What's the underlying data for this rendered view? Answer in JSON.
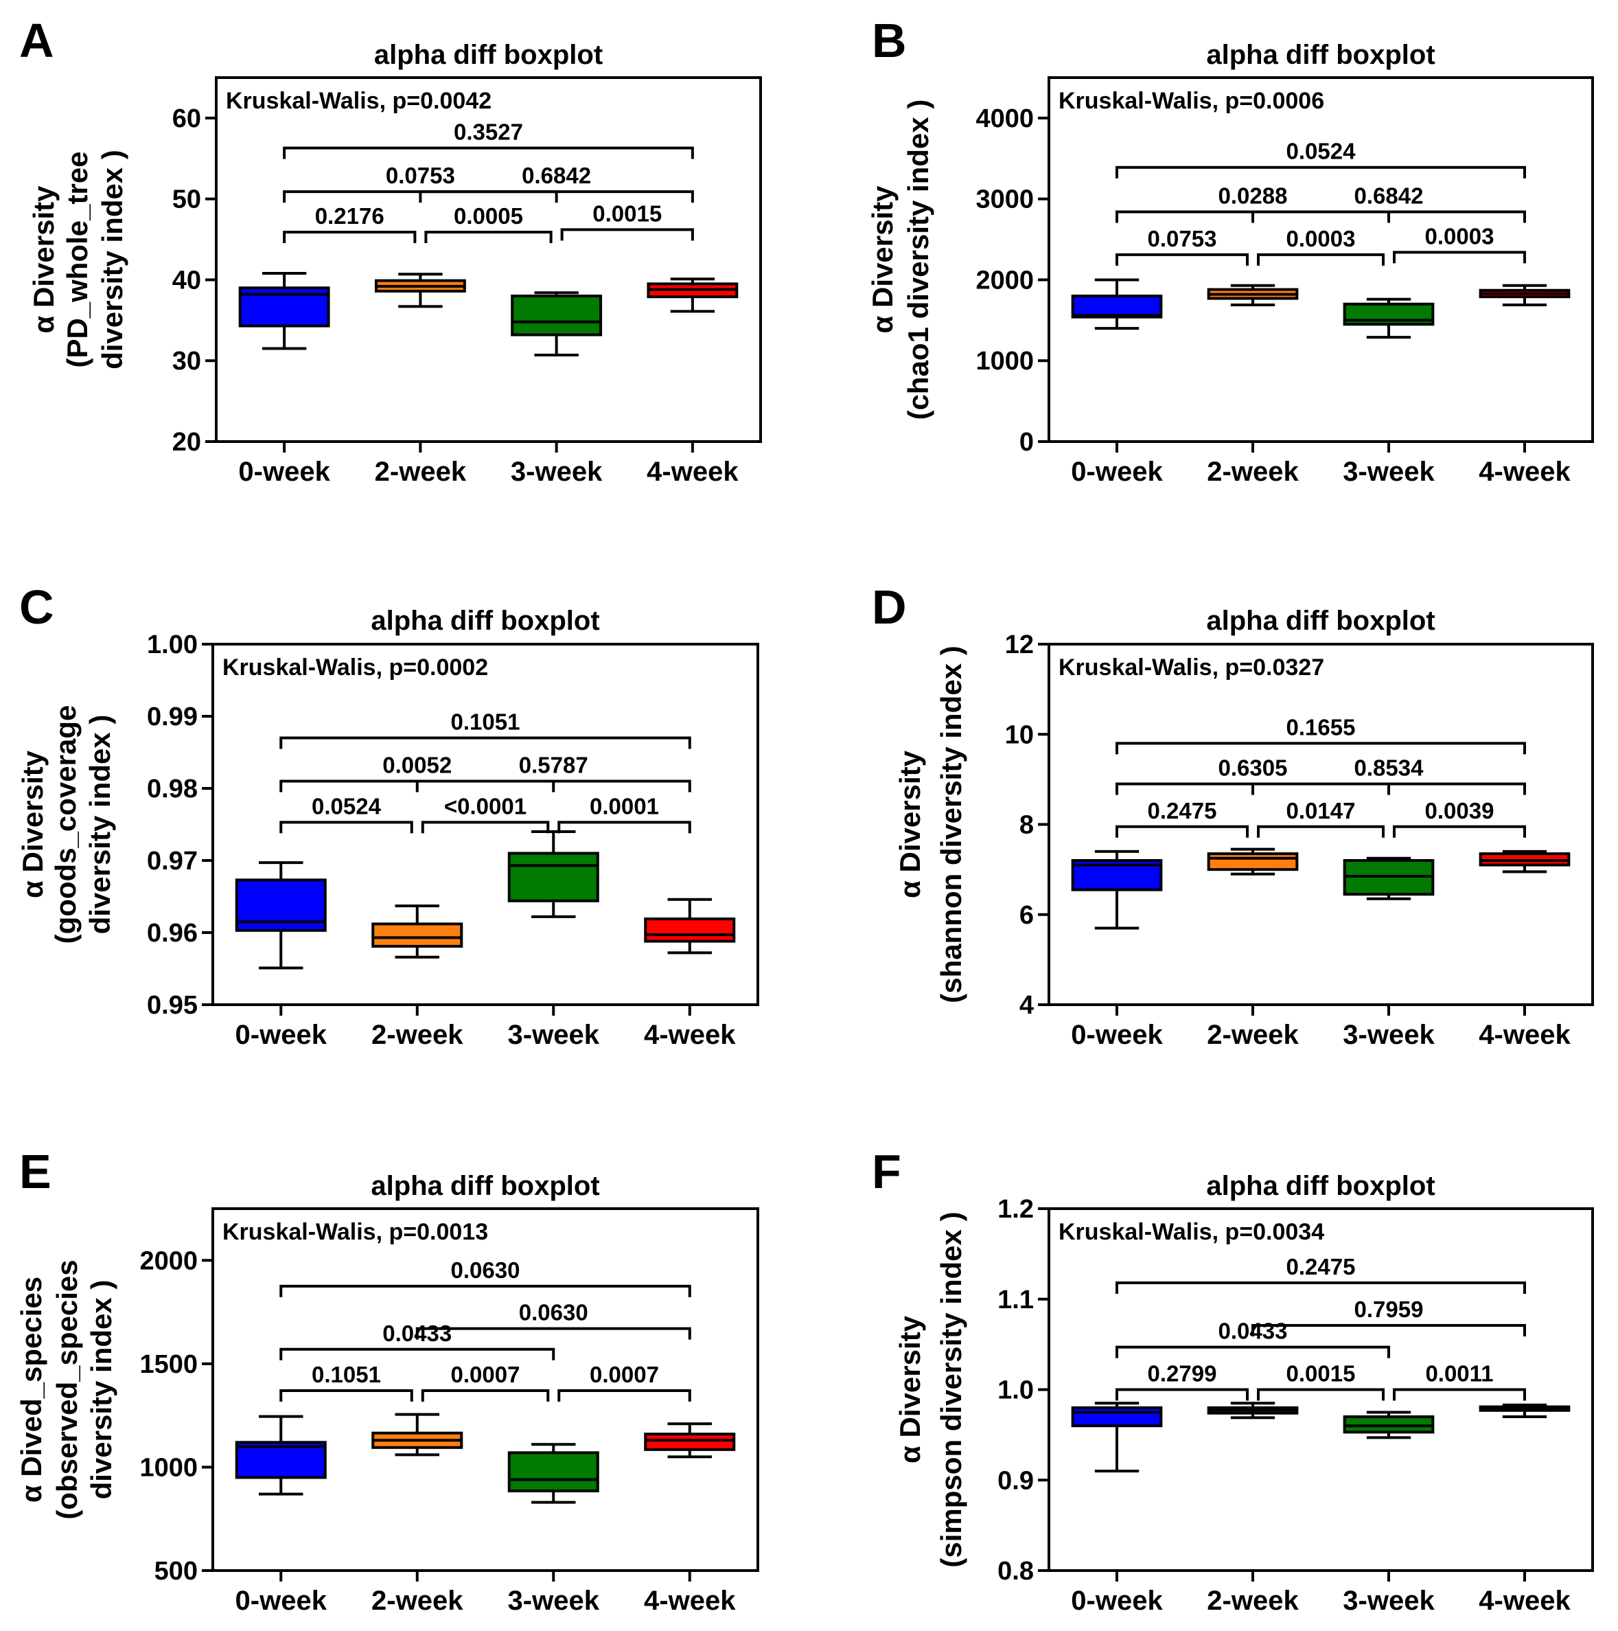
{
  "colors": {
    "0-week": "#0000ff",
    "2-week": "#ff7f0e",
    "3-week": "#007a00",
    "4-week": "#ff0000",
    "line": "#000000"
  },
  "chart_data": [
    {
      "panel": "A",
      "type": "box",
      "title": "alpha diff boxplot",
      "test_label": "Kruskal-Walis, p=0.0042",
      "ylabel_lines": [
        "α Diversity",
        "(PD_whole_tree",
        "diversity index )"
      ],
      "categories": [
        "0-week",
        "2-week",
        "3-week",
        "4-week"
      ],
      "ylim": [
        20,
        65
      ],
      "yticks": [
        20,
        30,
        40,
        50,
        60
      ],
      "ytick_labels": [
        "20",
        "30",
        "40",
        "50",
        "60"
      ],
      "boxes": [
        {
          "category": "0-week",
          "min": 31.5,
          "q1": 34.3,
          "median": 38.2,
          "q3": 39.0,
          "max": 40.8
        },
        {
          "category": "2-week",
          "min": 36.7,
          "q1": 38.6,
          "median": 39.2,
          "q3": 39.9,
          "max": 40.7
        },
        {
          "category": "3-week",
          "min": 30.7,
          "q1": 33.2,
          "median": 34.8,
          "q3": 38.0,
          "max": 38.4
        },
        {
          "category": "4-week",
          "min": 36.1,
          "q1": 37.9,
          "median": 38.8,
          "q3": 39.5,
          "max": 40.1
        }
      ],
      "comparisons": [
        {
          "from": 0,
          "to": 1,
          "p": "0.2176",
          "y": 45.9
        },
        {
          "from": 1,
          "to": 2,
          "p": "0.0005",
          "y": 45.9
        },
        {
          "from": 2,
          "to": 3,
          "p": "0.0015",
          "y": 46.2
        },
        {
          "from": 0,
          "to": 2,
          "p": "0.0753",
          "y": 50.9
        },
        {
          "from": 1,
          "to": 3,
          "p": "0.6842",
          "y": 50.9
        },
        {
          "from": 0,
          "to": 3,
          "p": "0.3527",
          "y": 56.3
        }
      ]
    },
    {
      "panel": "B",
      "type": "box",
      "title": "alpha diff boxplot",
      "test_label": "Kruskal-Walis, p=0.0006",
      "ylabel_lines": [
        "α Diversity",
        "(chao1 diversity index )"
      ],
      "categories": [
        "0-week",
        "2-week",
        "3-week",
        "4-week"
      ],
      "ylim": [
        0,
        4500
      ],
      "yticks": [
        0,
        1000,
        2000,
        3000,
        4000
      ],
      "ytick_labels": [
        "0",
        "1000",
        "2000",
        "3000",
        "4000"
      ],
      "boxes": [
        {
          "category": "0-week",
          "min": 1400,
          "q1": 1540,
          "median": 1560,
          "q3": 1800,
          "max": 2000
        },
        {
          "category": "2-week",
          "min": 1690,
          "q1": 1770,
          "median": 1820,
          "q3": 1880,
          "max": 1930
        },
        {
          "category": "3-week",
          "min": 1290,
          "q1": 1450,
          "median": 1500,
          "q3": 1700,
          "max": 1760
        },
        {
          "category": "4-week",
          "min": 1690,
          "q1": 1790,
          "median": 1830,
          "q3": 1870,
          "max": 1930
        }
      ],
      "comparisons": [
        {
          "from": 0,
          "to": 1,
          "p": "0.0753",
          "y": 2310
        },
        {
          "from": 1,
          "to": 2,
          "p": "0.0003",
          "y": 2310
        },
        {
          "from": 2,
          "to": 3,
          "p": "0.0003",
          "y": 2340
        },
        {
          "from": 0,
          "to": 2,
          "p": "0.0288",
          "y": 2840
        },
        {
          "from": 1,
          "to": 3,
          "p": "0.6842",
          "y": 2840
        },
        {
          "from": 0,
          "to": 3,
          "p": "0.0524",
          "y": 3390
        }
      ]
    },
    {
      "panel": "C",
      "type": "box",
      "title": "alpha diff boxplot",
      "test_label": "Kruskal-Walis, p=0.0002",
      "ylabel_lines": [
        "α Diversity",
        "(goods_coverage",
        "diversity index )"
      ],
      "categories": [
        "0-week",
        "2-week",
        "3-week",
        "4-week"
      ],
      "ylim": [
        0.95,
        1.0
      ],
      "yticks": [
        0.95,
        0.96,
        0.97,
        0.98,
        0.99,
        1.0
      ],
      "ytick_labels": [
        "0.95",
        "0.96",
        "0.97",
        "0.98",
        "0.99",
        "1.00"
      ],
      "boxes": [
        {
          "category": "0-week",
          "min": 0.9551,
          "q1": 0.9603,
          "median": 0.9615,
          "q3": 0.9673,
          "max": 0.9697
        },
        {
          "category": "2-week",
          "min": 0.9566,
          "q1": 0.9581,
          "median": 0.9593,
          "q3": 0.9612,
          "max": 0.9637
        },
        {
          "category": "3-week",
          "min": 0.9622,
          "q1": 0.9644,
          "median": 0.9693,
          "q3": 0.971,
          "max": 0.974
        },
        {
          "category": "4-week",
          "min": 0.9572,
          "q1": 0.9588,
          "median": 0.9597,
          "q3": 0.9619,
          "max": 0.9646
        }
      ],
      "comparisons": [
        {
          "from": 0,
          "to": 1,
          "p": "0.0524",
          "y": 0.9753
        },
        {
          "from": 1,
          "to": 2,
          "p": "<0.0001",
          "y": 0.9753
        },
        {
          "from": 2,
          "to": 3,
          "p": "0.0001",
          "y": 0.9753
        },
        {
          "from": 0,
          "to": 2,
          "p": "0.0052",
          "y": 0.981
        },
        {
          "from": 1,
          "to": 3,
          "p": "0.5787",
          "y": 0.981
        },
        {
          "from": 0,
          "to": 3,
          "p": "0.1051",
          "y": 0.987
        }
      ]
    },
    {
      "panel": "D",
      "type": "box",
      "title": "alpha diff boxplot",
      "test_label": "Kruskal-Walis, p=0.0327",
      "ylabel_lines": [
        "α Diversity",
        "(shannon diversity index )"
      ],
      "categories": [
        "0-week",
        "2-week",
        "3-week",
        "4-week"
      ],
      "ylim": [
        4,
        12
      ],
      "yticks": [
        4,
        6,
        8,
        10,
        12
      ],
      "ytick_labels": [
        "4",
        "6",
        "8",
        "10",
        "12"
      ],
      "boxes": [
        {
          "category": "0-week",
          "min": 5.7,
          "q1": 6.55,
          "median": 7.1,
          "q3": 7.2,
          "max": 7.4
        },
        {
          "category": "2-week",
          "min": 6.9,
          "q1": 7.0,
          "median": 7.25,
          "q3": 7.35,
          "max": 7.45
        },
        {
          "category": "3-week",
          "min": 6.35,
          "q1": 6.45,
          "median": 6.85,
          "q3": 7.2,
          "max": 7.25
        },
        {
          "category": "4-week",
          "min": 6.95,
          "q1": 7.1,
          "median": 7.2,
          "q3": 7.35,
          "max": 7.4
        }
      ],
      "comparisons": [
        {
          "from": 0,
          "to": 1,
          "p": "0.2475",
          "y": 7.95
        },
        {
          "from": 1,
          "to": 2,
          "p": "0.0147",
          "y": 7.95
        },
        {
          "from": 2,
          "to": 3,
          "p": "0.0039",
          "y": 7.95
        },
        {
          "from": 0,
          "to": 2,
          "p": "0.6305",
          "y": 8.9
        },
        {
          "from": 1,
          "to": 3,
          "p": "0.8534",
          "y": 8.9
        },
        {
          "from": 0,
          "to": 3,
          "p": "0.1655",
          "y": 9.8
        }
      ]
    },
    {
      "panel": "E",
      "type": "box",
      "title": "alpha diff boxplot",
      "test_label": "Kruskal-Walis, p=0.0013",
      "ylabel_lines": [
        "α Dived_species",
        "(observed_species",
        "diversity index )"
      ],
      "categories": [
        "0-week",
        "2-week",
        "3-week",
        "4-week"
      ],
      "ylim": [
        500,
        2250
      ],
      "yticks": [
        500,
        1000,
        1500,
        2000
      ],
      "ytick_labels": [
        "500",
        "1000",
        "1500",
        "2000"
      ],
      "boxes": [
        {
          "category": "0-week",
          "min": 870,
          "q1": 950,
          "median": 1100,
          "q3": 1120,
          "max": 1245
        },
        {
          "category": "2-week",
          "min": 1060,
          "q1": 1095,
          "median": 1130,
          "q3": 1165,
          "max": 1255
        },
        {
          "category": "3-week",
          "min": 830,
          "q1": 885,
          "median": 940,
          "q3": 1070,
          "max": 1110
        },
        {
          "category": "4-week",
          "min": 1050,
          "q1": 1085,
          "median": 1130,
          "q3": 1160,
          "max": 1210
        }
      ],
      "comparisons": [
        {
          "from": 0,
          "to": 1,
          "p": "0.1051",
          "y": 1370
        },
        {
          "from": 1,
          "to": 2,
          "p": "0.0007",
          "y": 1370
        },
        {
          "from": 2,
          "to": 3,
          "p": "0.0007",
          "y": 1370
        },
        {
          "from": 0,
          "to": 2,
          "p": "0.0433",
          "y": 1570
        },
        {
          "from": 1,
          "to": 3,
          "p": "0.0630",
          "y": 1670
        },
        {
          "from": 0,
          "to": 3,
          "p": "0.0630",
          "y": 1875
        }
      ]
    },
    {
      "panel": "F",
      "type": "box",
      "title": "alpha diff boxplot",
      "test_label": "Kruskal-Walis, p=0.0034",
      "ylabel_lines": [
        "α Diversity",
        "(simpson diversity index )"
      ],
      "categories": [
        "0-week",
        "2-week",
        "3-week",
        "4-week"
      ],
      "ylim": [
        0.8,
        1.2
      ],
      "yticks": [
        0.8,
        0.9,
        1.0,
        1.1,
        1.2
      ],
      "ytick_labels": [
        "0.8",
        "0.9",
        "1.0",
        "1.1",
        "1.2"
      ],
      "boxes": [
        {
          "category": "0-week",
          "min": 0.91,
          "q1": 0.96,
          "median": 0.975,
          "q3": 0.98,
          "max": 0.985
        },
        {
          "category": "2-week",
          "min": 0.969,
          "q1": 0.974,
          "median": 0.977,
          "q3": 0.98,
          "max": 0.985
        },
        {
          "category": "3-week",
          "min": 0.947,
          "q1": 0.953,
          "median": 0.96,
          "q3": 0.97,
          "max": 0.975
        },
        {
          "category": "4-week",
          "min": 0.97,
          "q1": 0.977,
          "median": 0.979,
          "q3": 0.981,
          "max": 0.983
        }
      ],
      "comparisons": [
        {
          "from": 0,
          "to": 1,
          "p": "0.2799",
          "y": 1.0
        },
        {
          "from": 1,
          "to": 2,
          "p": "0.0015",
          "y": 1.0
        },
        {
          "from": 2,
          "to": 3,
          "p": "0.0011",
          "y": 1.0
        },
        {
          "from": 0,
          "to": 2,
          "p": "0.0433",
          "y": 1.047
        },
        {
          "from": 1,
          "to": 3,
          "p": "0.7959",
          "y": 1.071
        },
        {
          "from": 0,
          "to": 3,
          "p": "0.2475",
          "y": 1.118
        }
      ]
    }
  ]
}
